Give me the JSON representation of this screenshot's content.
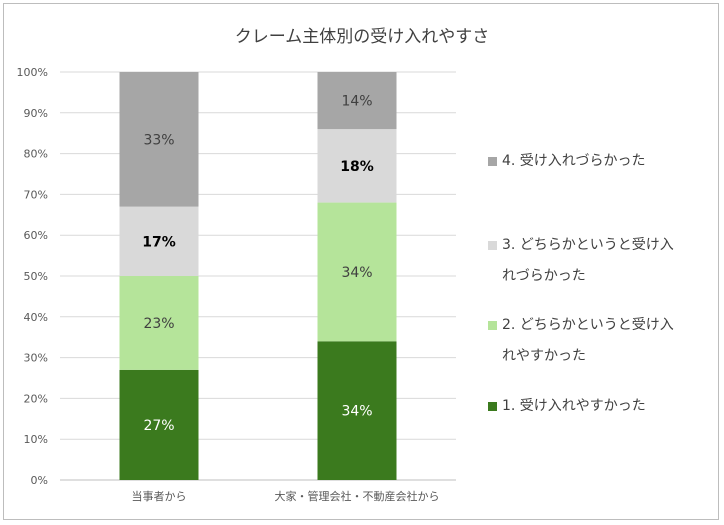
{
  "chart_data": {
    "type": "bar",
    "stacked": true,
    "title": "クレーム主体別の受け入れやすさ",
    "categories": [
      "当事者から",
      "大家・管理会社・不動産会社から"
    ],
    "y_ticks": [
      "0%",
      "10%",
      "20%",
      "30%",
      "40%",
      "50%",
      "60%",
      "70%",
      "80%",
      "90%",
      "100%"
    ],
    "ylim": [
      0,
      100
    ],
    "grid": true,
    "legend_position": "right",
    "series": [
      {
        "name": "1. 受け入れやすかった",
        "values": [
          27,
          34
        ],
        "labels": [
          "27%",
          "34%"
        ],
        "color": "#3b7a1e",
        "label_color": "#ffffff"
      },
      {
        "name": "2. どちらかというと受け入れやすかった",
        "values": [
          23,
          34
        ],
        "labels": [
          "23%",
          "34%"
        ],
        "color": "#b5e49a",
        "label_color": "#404040"
      },
      {
        "name": "3. どちらかというと受け入れづらかった",
        "values": [
          17,
          18
        ],
        "labels": [
          "17%",
          "18%"
        ],
        "color": "#d9d9d9",
        "label_color": "#000000"
      },
      {
        "name": "4. 受け入れづらかった",
        "values": [
          33,
          14
        ],
        "labels": [
          "33%",
          "14%"
        ],
        "color": "#a6a6a6",
        "label_color": "#404040"
      }
    ]
  },
  "legend": {
    "items": [
      {
        "lines": [
          "4. 受け入れづらかった"
        ],
        "color": "#a6a6a6"
      },
      {
        "lines": [
          "3. どちらかというと受け入",
          "れづらかった"
        ],
        "color": "#d9d9d9"
      },
      {
        "lines": [
          "2. どちらかというと受け入",
          "れやすかった"
        ],
        "color": "#b5e49a"
      },
      {
        "lines": [
          "1. 受け入れやすかった"
        ],
        "color": "#3b7a1e"
      }
    ]
  }
}
